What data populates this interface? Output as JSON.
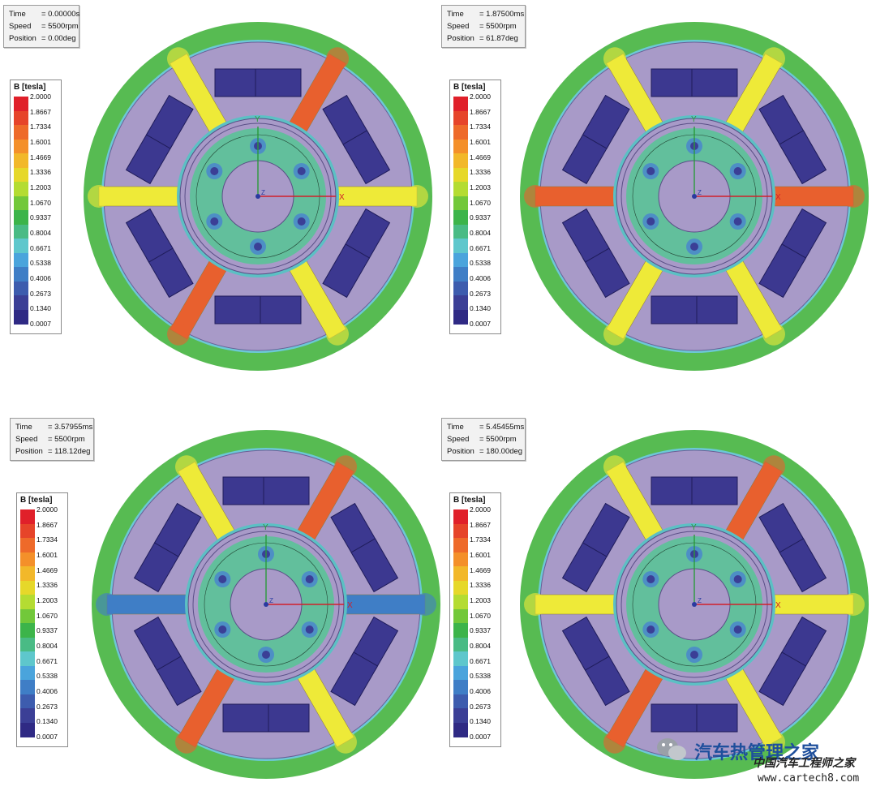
{
  "legend": {
    "title": "B [tesla]",
    "ticks": [
      "2.0000",
      "1.8667",
      "1.7334",
      "1.6001",
      "1.4669",
      "1.3336",
      "1.2003",
      "1.0670",
      "0.9337",
      "0.8004",
      "0.6671",
      "0.5338",
      "0.4006",
      "0.2673",
      "0.1340",
      "0.0007"
    ],
    "colors": [
      "#e0202a",
      "#e6442a",
      "#ee6a2a",
      "#f4902a",
      "#f2b82a",
      "#e6d82a",
      "#b4dc32",
      "#72c83a",
      "#3cb44a",
      "#49bb85",
      "#5ec7cc",
      "#4aa4dc",
      "#3f7ec6",
      "#3d5cae",
      "#3b3f96",
      "#2f2a84"
    ]
  },
  "colors": {
    "rotor_fill": "#a89ac8",
    "slot_fill": "#3c3890",
    "stator_ring": "#57bb52",
    "low_field": "#6cc8d6",
    "yellow": "#eeea38",
    "orange": "#e8602e"
  },
  "panels": [
    {
      "time_label": "Time",
      "time_value": "= 0.00000s",
      "speed_label": "Speed",
      "speed_value": "= 5500rpm",
      "position_label": "Position",
      "position_value": "= 0.00deg",
      "teeth": [
        "orange",
        "yellow",
        "yellow",
        "orange",
        "yellow",
        "yellow"
      ]
    },
    {
      "time_label": "Time",
      "time_value": "= 1.87500ms",
      "speed_label": "Speed",
      "speed_value": "= 5500rpm",
      "position_label": "Position",
      "position_value": "= 61.87deg",
      "teeth": [
        "yellow",
        "orange",
        "yellow",
        "yellow",
        "orange",
        "yellow"
      ]
    },
    {
      "time_label": "Time",
      "time_value": "= 3.57955ms",
      "speed_label": "Speed",
      "speed_value": "= 5500rpm",
      "position_label": "Position",
      "position_value": "= 118.12deg",
      "teeth": [
        "orange",
        "blue",
        "yellow",
        "orange",
        "blue",
        "yellow"
      ]
    },
    {
      "time_label": "Time",
      "time_value": "= 5.45455ms",
      "speed_label": "Speed",
      "speed_value": "= 5500rpm",
      "position_label": "Position",
      "position_value": "= 180.00deg",
      "teeth": [
        "orange",
        "yellow",
        "yellow",
        "orange",
        "yellow",
        "yellow"
      ]
    }
  ],
  "axis_labels": {
    "x": "X",
    "y": "Y",
    "z": "Z"
  },
  "watermark": {
    "title": "汽车热管理之家",
    "subtitle": "中国汽车工程师之家",
    "url": "www.cartech8.com"
  }
}
